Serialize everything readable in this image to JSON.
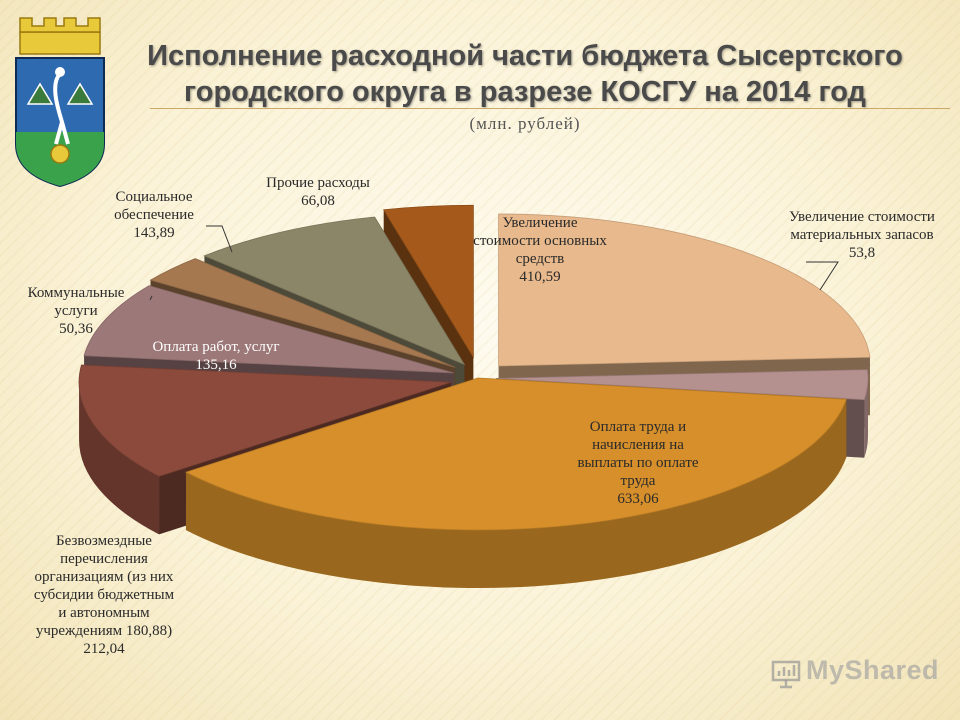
{
  "header": {
    "title_line1": "Исполнение расходной части бюджета Сысертского",
    "title_line2": "городского округа в разрезе КОСГУ на 2014 год",
    "subtitle": "(млн. рублей)"
  },
  "watermark": "MyShared",
  "chart_data": {
    "type": "pie",
    "title": "Исполнение расходной части бюджета Сысертского городского округа в разрезе КОСГУ на 2014 год",
    "unit": "млн. рублей",
    "slices": [
      {
        "label_lines": [
          "Увеличение",
          "стоимости основных",
          "средств"
        ],
        "value_text": "410,59",
        "value": 410.59,
        "color": "#e8b98c"
      },
      {
        "label_lines": [
          "Увеличение стоимости",
          "материальных запасов"
        ],
        "value_text": "53,8",
        "value": 53.8,
        "color": "#b4908e"
      },
      {
        "label_lines": [
          "Оплата труда и",
          "начисления на",
          "выплаты по оплате",
          "труда"
        ],
        "value_text": "633,06",
        "value": 633.06,
        "color": "#d68f2a"
      },
      {
        "label_lines": [
          "Безвозмездные",
          "перечисления",
          "организациям (из них",
          "субсидии бюджетным",
          "и автономным",
          "учреждениям 180,88)"
        ],
        "value_text": "212,04",
        "value": 212.04,
        "color": "#8b4a3c"
      },
      {
        "label_lines": [
          "Оплата работ, услуг"
        ],
        "value_text": "135,16",
        "value": 135.16,
        "color": "#9d7878"
      },
      {
        "label_lines": [
          "Коммунальные",
          "услуги"
        ],
        "value_text": "50,36",
        "value": 50.36,
        "color": "#a57850"
      },
      {
        "label_lines": [
          "Социальное",
          "обеспечение"
        ],
        "value_text": "143,89",
        "value": 143.89,
        "color": "#8c8668"
      },
      {
        "label_lines": [
          "Прочие расходы"
        ],
        "value_text": "66,08",
        "value": 66.08,
        "color": "#a55a1c"
      }
    ]
  }
}
